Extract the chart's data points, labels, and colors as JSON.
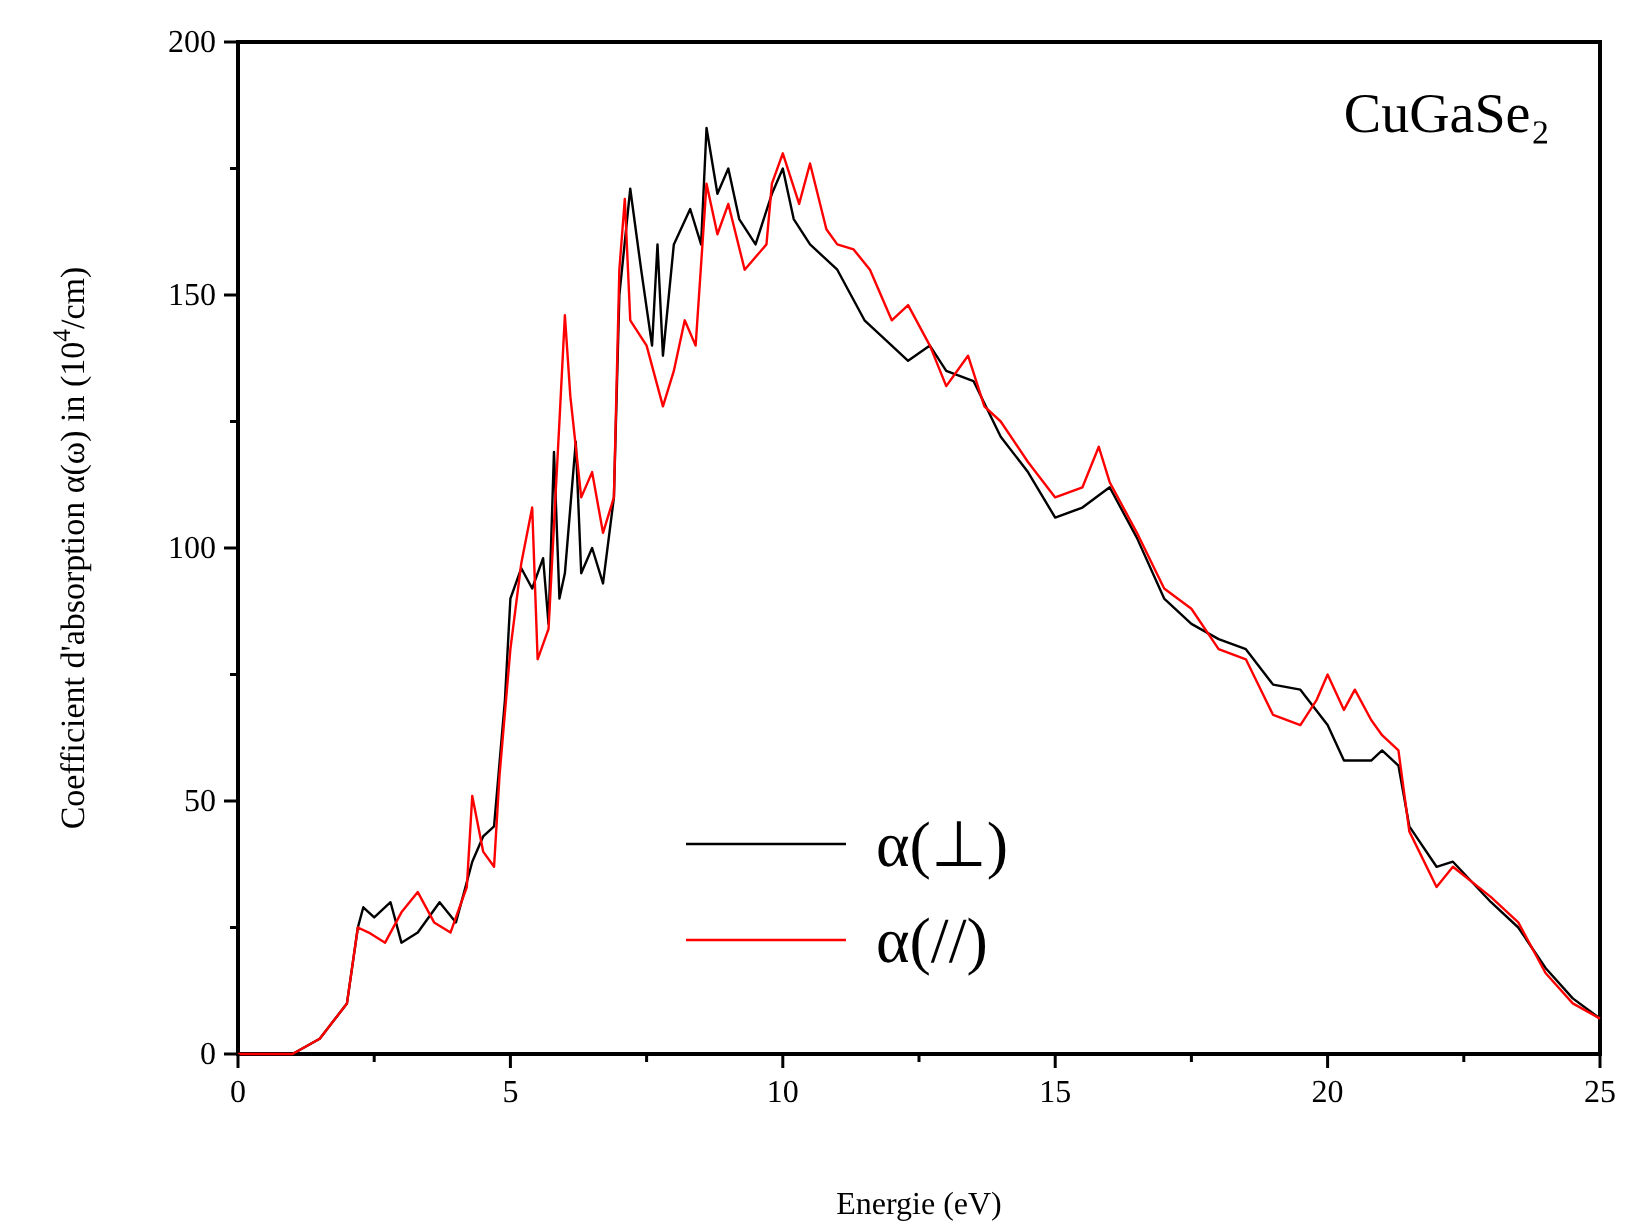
{
  "chart_data": {
    "type": "line",
    "title": "CuGaSe₂",
    "xlabel": "Energie (eV)",
    "ylabel": "Coefficient d'absorption α(ω) in (10$^{4}$/cm)",
    "xlim": [
      0,
      25
    ],
    "ylim": [
      0,
      200
    ],
    "xticks": [
      0,
      {
        "value": 2.5,
        "label": null
      },
      5,
      {
        "value": 7.5,
        "label": null
      },
      10,
      {
        "value": 12.5,
        "label": null
      },
      15,
      {
        "value": 17.5,
        "label": null
      },
      20,
      {
        "value": 22.5,
        "label": null
      },
      25
    ],
    "yticks": [
      0,
      {
        "value": 25,
        "label": null
      },
      50,
      {
        "value": 75,
        "label": null
      },
      100,
      {
        "value": 125,
        "label": null
      },
      150,
      {
        "value": 175,
        "label": null
      },
      200
    ],
    "grid": false,
    "legend": "bottom",
    "line_style": "solid",
    "series": [
      {
        "name": "α(⊥)",
        "color": "#000000",
        "x": [
          0,
          1.0,
          1.5,
          2.0,
          2.2,
          2.3,
          2.5,
          2.8,
          3.0,
          3.3,
          3.7,
          4.0,
          4.3,
          4.5,
          4.7,
          4.9,
          5.0,
          5.2,
          5.4,
          5.6,
          5.7,
          5.8,
          5.9,
          6.0,
          6.2,
          6.3,
          6.5,
          6.7,
          6.9,
          7.0,
          7.2,
          7.4,
          7.6,
          7.7,
          7.8,
          8.0,
          8.3,
          8.5,
          8.6,
          8.8,
          9.0,
          9.2,
          9.5,
          9.8,
          10.0,
          10.2,
          10.5,
          11.0,
          11.5,
          12.0,
          12.3,
          12.7,
          13.0,
          13.5,
          14.0,
          14.5,
          15.0,
          15.5,
          16.0,
          16.5,
          17.0,
          17.5,
          18.0,
          18.5,
          19.0,
          19.5,
          20.0,
          20.3,
          20.8,
          21.0,
          21.3,
          21.5,
          22.0,
          22.3,
          23.0,
          23.5,
          24.0,
          24.5,
          25.0
        ],
        "values": [
          0,
          0,
          3,
          10,
          25,
          29,
          27,
          30,
          22,
          24,
          30,
          26,
          38,
          43,
          45,
          70,
          90,
          96,
          92,
          98,
          85,
          119,
          90,
          95,
          121,
          95,
          100,
          93,
          110,
          150,
          171,
          155,
          140,
          160,
          138,
          160,
          167,
          160,
          183,
          170,
          175,
          165,
          160,
          170,
          175,
          165,
          160,
          155,
          145,
          140,
          137,
          140,
          135,
          133,
          122,
          115,
          106,
          108,
          112,
          102,
          90,
          85,
          82,
          80,
          73,
          72,
          65,
          58,
          58,
          60,
          57,
          45,
          37,
          38,
          30,
          25,
          17,
          11,
          7
        ]
      },
      {
        "name": "α(//)",
        "color": "#ff0000",
        "x": [
          0,
          1.0,
          1.5,
          2.0,
          2.2,
          2.4,
          2.7,
          3.0,
          3.3,
          3.6,
          3.9,
          4.2,
          4.3,
          4.5,
          4.7,
          4.8,
          5.0,
          5.2,
          5.4,
          5.5,
          5.7,
          5.9,
          6.0,
          6.1,
          6.3,
          6.5,
          6.7,
          6.9,
          7.0,
          7.1,
          7.2,
          7.5,
          7.8,
          8.0,
          8.2,
          8.4,
          8.6,
          8.8,
          9.0,
          9.3,
          9.7,
          9.8,
          10.0,
          10.3,
          10.5,
          10.8,
          11.0,
          11.3,
          11.6,
          12.0,
          12.3,
          12.7,
          13.0,
          13.4,
          13.7,
          14.0,
          14.5,
          15.0,
          15.5,
          15.8,
          16.0,
          16.5,
          17.0,
          17.5,
          18.0,
          18.5,
          19.0,
          19.5,
          19.8,
          20.0,
          20.3,
          20.5,
          20.8,
          21.0,
          21.3,
          21.5,
          22.0,
          22.3,
          23.0,
          23.5,
          24.0,
          24.5,
          25.0
        ],
        "values": [
          0,
          0,
          3,
          10,
          25,
          24,
          22,
          28,
          32,
          26,
          24,
          33,
          51,
          40,
          37,
          55,
          80,
          97,
          108,
          78,
          84,
          125,
          146,
          130,
          110,
          115,
          103,
          110,
          155,
          169,
          145,
          140,
          128,
          135,
          145,
          140,
          172,
          162,
          168,
          155,
          160,
          172,
          178,
          168,
          176,
          163,
          160,
          159,
          155,
          145,
          148,
          140,
          132,
          138,
          128,
          125,
          117,
          110,
          112,
          120,
          113,
          103,
          92,
          88,
          80,
          78,
          67,
          65,
          70,
          75,
          68,
          72,
          66,
          63,
          60,
          44,
          33,
          37,
          31,
          26,
          16,
          10,
          7
        ]
      }
    ]
  }
}
